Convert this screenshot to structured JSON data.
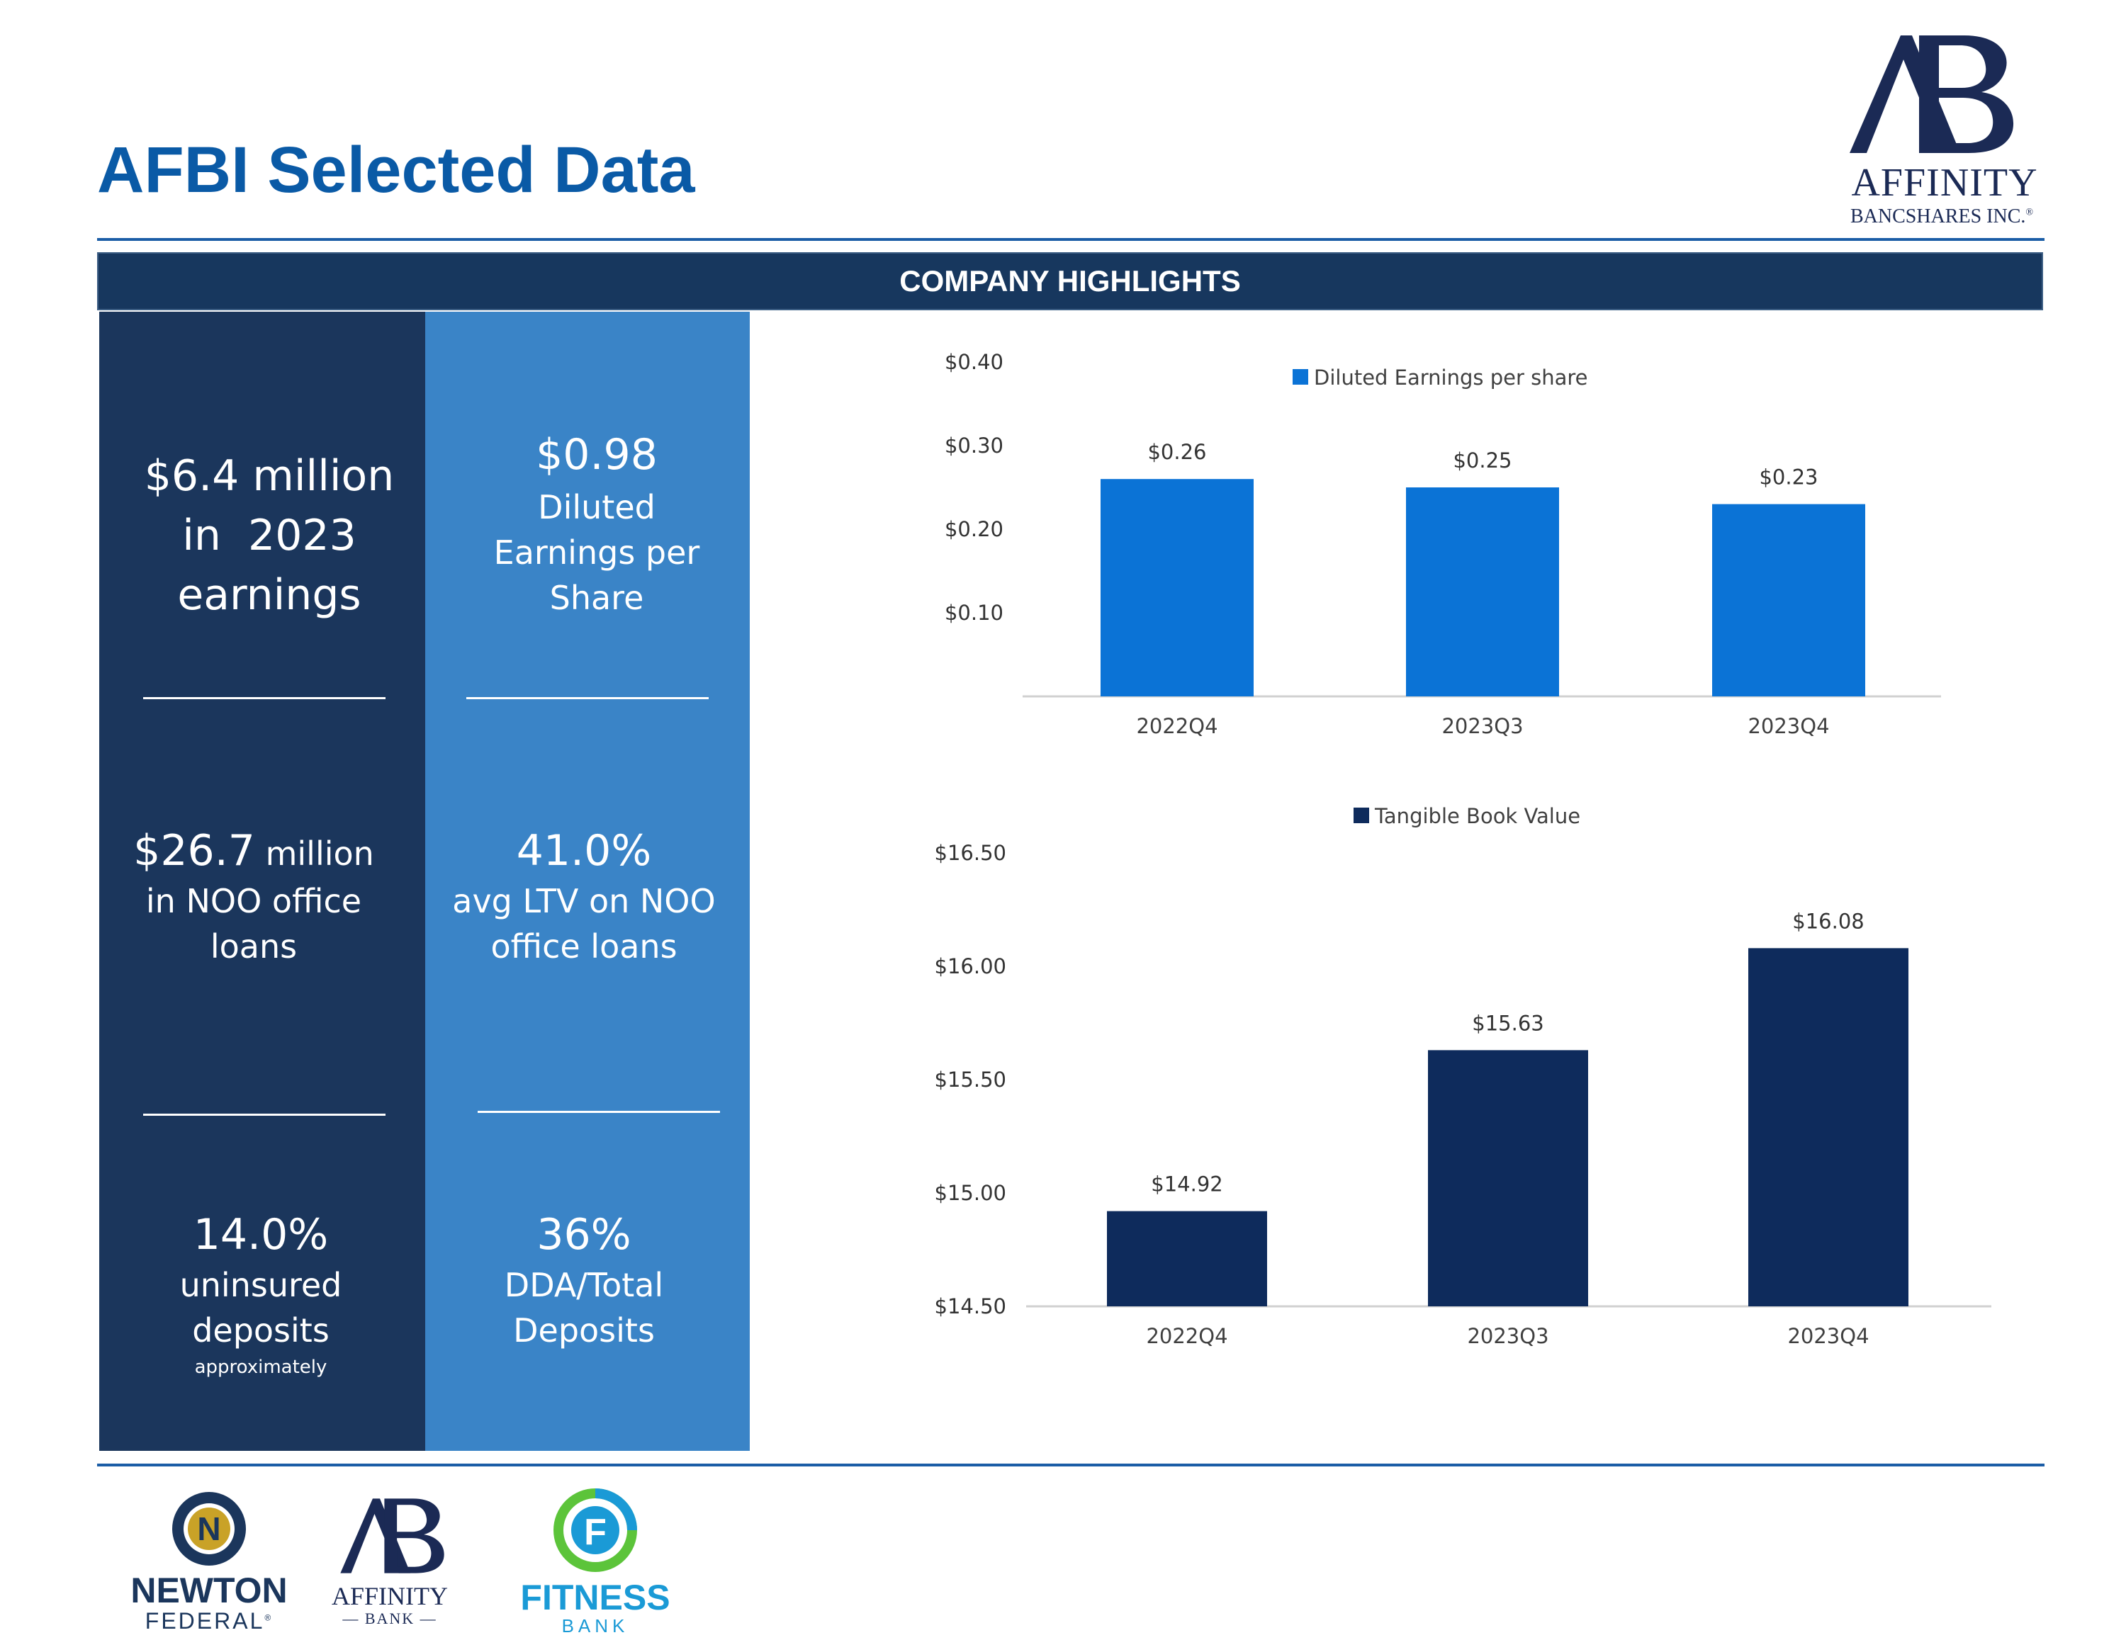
{
  "page": {
    "title": "AFBI Selected Data"
  },
  "banner": {
    "label": "COMPANY HIGHLIGHTS"
  },
  "highlights": {
    "earnings": {
      "value": "$6.4 million",
      "line2": "in  2023",
      "line3": "earnings"
    },
    "eps": {
      "value": "$0.98",
      "line2": "Diluted",
      "line3": "Earnings per",
      "line4": "Share"
    },
    "noo_loans": {
      "value": "$26.7",
      "unit": " million",
      "line2": "in NOO office",
      "line3": "loans"
    },
    "ltv": {
      "value": "41.0%",
      "line2": "avg LTV on NOO",
      "line3": "office loans"
    },
    "uninsured": {
      "value": "14.0%",
      "line2": "uninsured",
      "line3": "deposits",
      "note": "approximately"
    },
    "dda": {
      "value": "36%",
      "line2": "DDA/Total",
      "line3": "Deposits"
    }
  },
  "logos": {
    "header": {
      "mark": "AB",
      "name": "AFFINITY",
      "sub": "BANCSHARES INC.",
      "tm": "®"
    },
    "newton": {
      "mark": "N",
      "name": "NEWTON",
      "sub": "FEDERAL",
      "tm": "®"
    },
    "affinity_bank": {
      "mark": "AB",
      "name": "AFFINITY",
      "sub": "— BANK —"
    },
    "fitness": {
      "mark": "F",
      "name": "FITNESS",
      "sub": "BANK"
    }
  },
  "colors": {
    "title": "#0a5aa6",
    "banner": "#17375e",
    "left_panel": "#1b365c",
    "right_panel": "#3a84c7",
    "eps_bar": "#0b73d6",
    "tbv_bar": "#0e2b5c"
  },
  "chart_data": [
    {
      "type": "bar",
      "title": "",
      "legend": "Diluted Earnings per share",
      "legend_position": "top-center",
      "categories": [
        "2022Q4",
        "2023Q3",
        "2023Q4"
      ],
      "values": [
        0.26,
        0.25,
        0.23
      ],
      "value_labels": [
        "$0.26",
        "$0.25",
        "$0.23"
      ],
      "ylim": [
        0,
        0.4
      ],
      "yticks": [
        0.1,
        0.2,
        0.3,
        0.4
      ],
      "ytick_labels": [
        "$0.10",
        "$0.20",
        "$0.30",
        "$0.40"
      ],
      "xlabel": "",
      "ylabel": "",
      "grid": false
    },
    {
      "type": "bar",
      "title": "",
      "legend": "Tangible Book Value",
      "legend_position": "top-center",
      "categories": [
        "2022Q4",
        "2023Q3",
        "2023Q4"
      ],
      "values": [
        14.92,
        15.63,
        16.08
      ],
      "value_labels": [
        "$14.92",
        "$15.63",
        "$16.08"
      ],
      "ylim": [
        14.5,
        16.5
      ],
      "yticks": [
        14.5,
        15.0,
        15.5,
        16.0,
        16.5
      ],
      "ytick_labels": [
        "$14.50",
        "$15.00",
        "$15.50",
        "$16.00",
        "$16.50"
      ],
      "xlabel": "",
      "ylabel": "",
      "grid": false
    }
  ]
}
